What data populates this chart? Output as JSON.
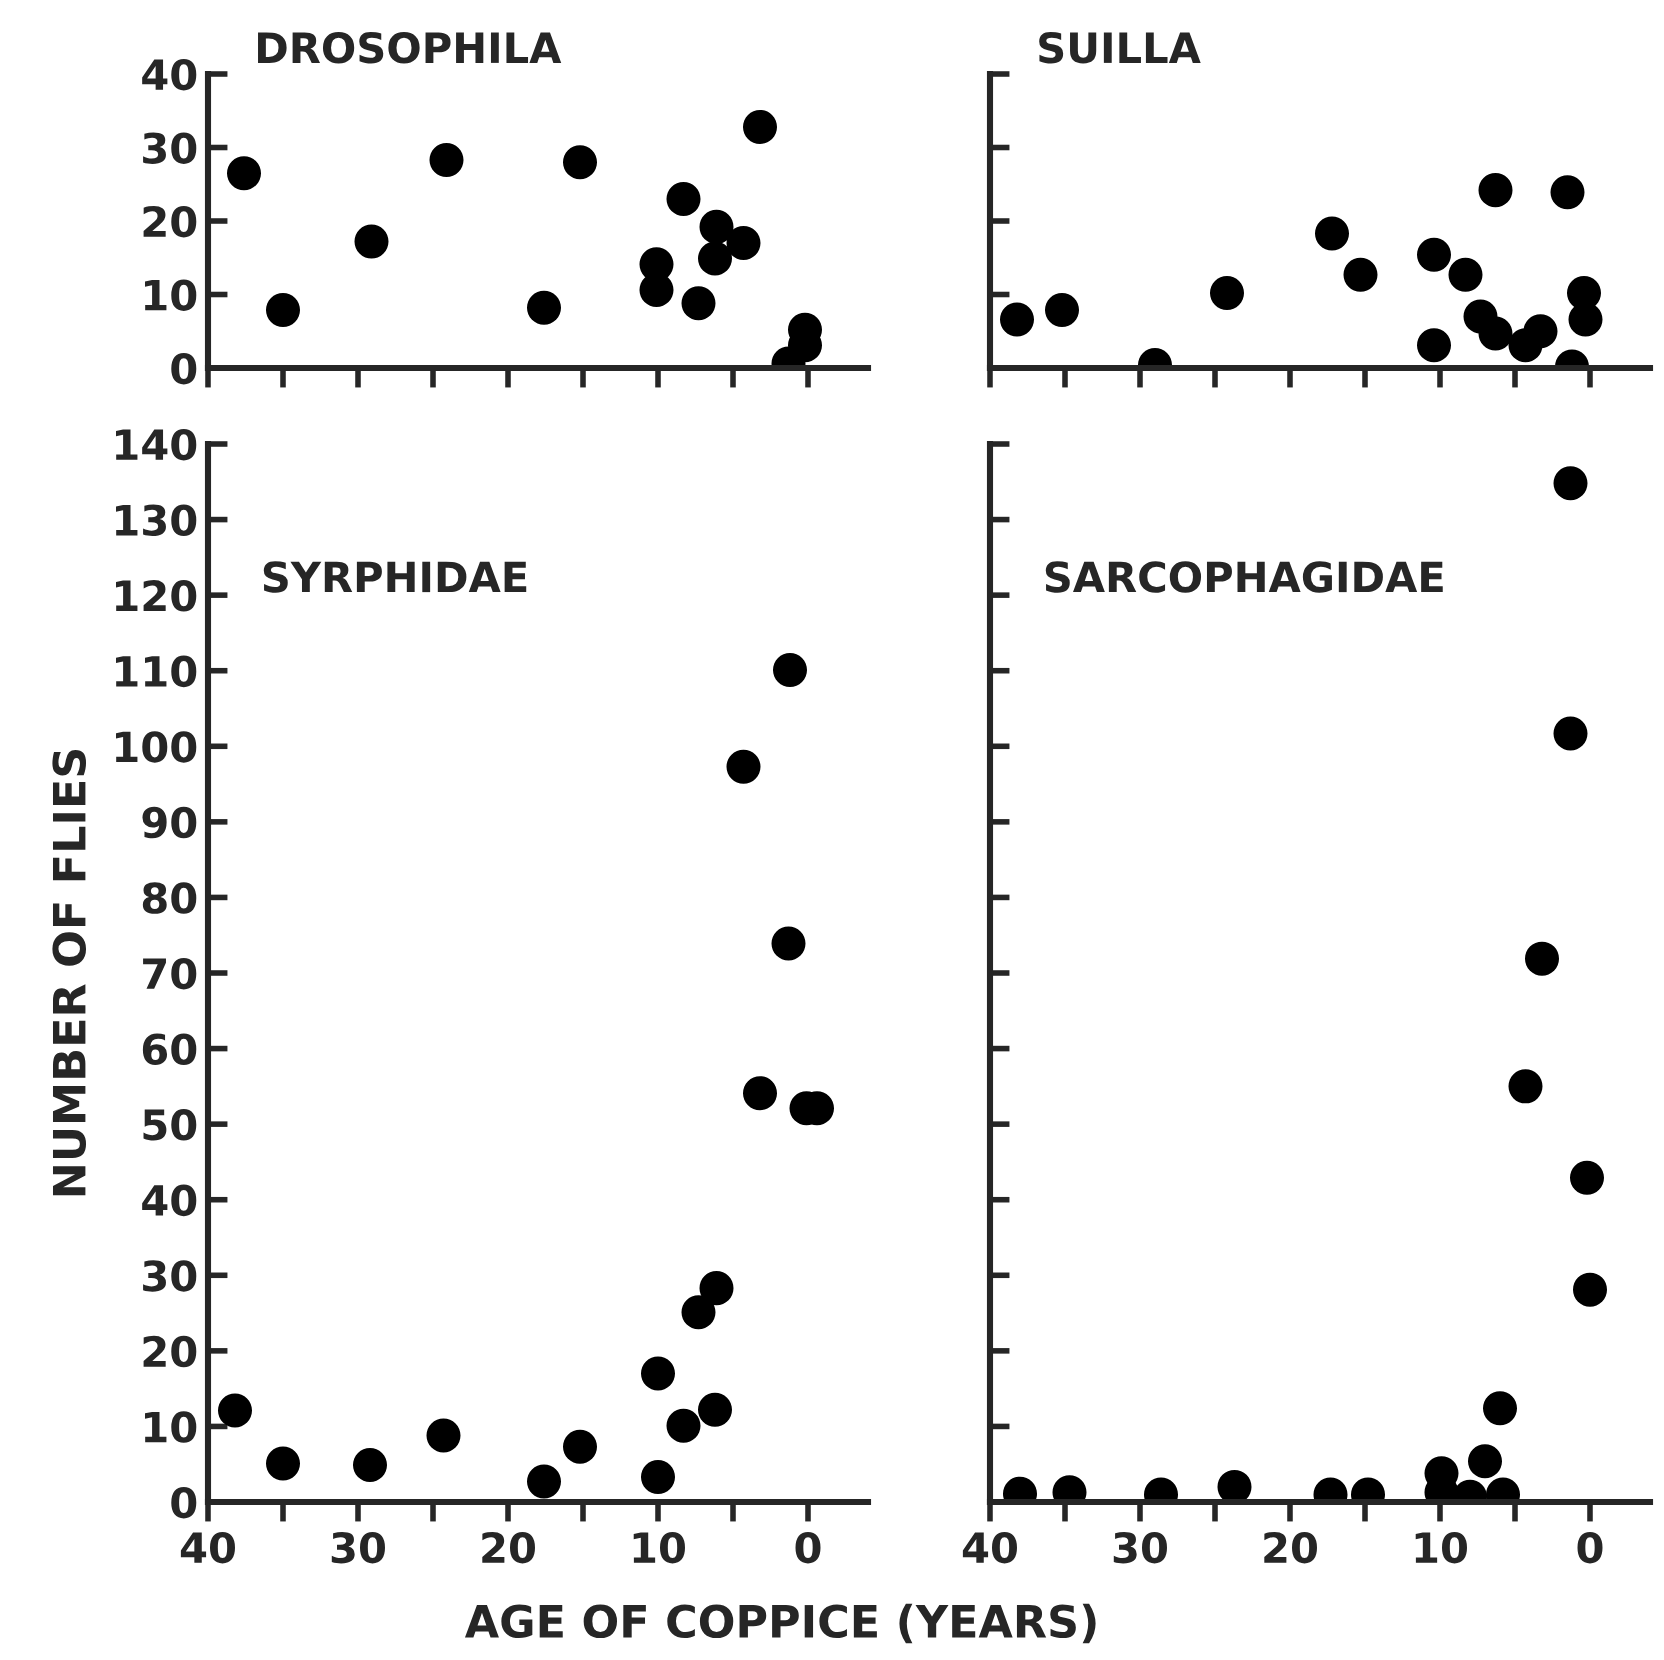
{
  "chart_data": [
    {
      "type": "scatter",
      "title": "DROSOPHILA",
      "xlim": [
        40,
        -4
      ],
      "ylim": [
        0,
        40
      ],
      "xticks": [
        40,
        35,
        30,
        25,
        20,
        15,
        10,
        5,
        0
      ],
      "yticks": [
        0,
        10,
        20,
        30,
        40
      ],
      "tick_labels": "y",
      "marker": "circle",
      "x": [
        37.6,
        35.0,
        29.1,
        24.1,
        17.6,
        15.2,
        10.1,
        10.1,
        8.3,
        7.3,
        6.1,
        6.2,
        4.3,
        3.2,
        1.3,
        0.2,
        0.2
      ],
      "series": [
        {
          "color": "#000000",
          "values": [
            26.5,
            7.9,
            17.2,
            28.3,
            8.2,
            28.0,
            14.1,
            10.6,
            23.0,
            8.8,
            19.2,
            14.9,
            17.0,
            32.8,
            0.6,
            5.2,
            3.1
          ]
        }
      ]
    },
    {
      "type": "scatter",
      "title": "SUILLA",
      "xlim": [
        40,
        -4
      ],
      "ylim": [
        0,
        40
      ],
      "xticks": [
        40,
        35,
        30,
        25,
        20,
        15,
        10,
        5,
        0
      ],
      "yticks": [
        0,
        10,
        20,
        30,
        40
      ],
      "tick_labels": false,
      "marker": "circle",
      "x": [
        38.2,
        35.2,
        29.0,
        24.2,
        17.2,
        15.3,
        10.4,
        10.4,
        8.3,
        7.3,
        6.3,
        6.3,
        4.3,
        3.3,
        1.5,
        1.2,
        0.4,
        0.3
      ],
      "series": [
        {
          "color": "#000000",
          "values": [
            6.6,
            7.9,
            0.4,
            10.2,
            18.3,
            12.7,
            15.4,
            3.1,
            12.7,
            7.0,
            24.2,
            4.7,
            3.1,
            5.0,
            23.9,
            0.2,
            10.2,
            6.6
          ]
        }
      ]
    },
    {
      "type": "scatter",
      "title": "SYRPHIDAE",
      "xlabel": "AGE OF COPPICE (YEARS)",
      "ylabel": "NUMBER OF FLIES",
      "xlim": [
        40,
        -4
      ],
      "ylim": [
        0,
        140
      ],
      "xticks": [
        40,
        {
          "value": 35,
          "label": null
        },
        30,
        {
          "value": 25,
          "label": null
        },
        20,
        {
          "value": 15,
          "label": null
        },
        10,
        {
          "value": 5,
          "label": null
        },
        0
      ],
      "yticks": [
        0,
        10,
        20,
        30,
        40,
        50,
        60,
        70,
        80,
        90,
        100,
        110,
        120,
        130,
        140
      ],
      "marker": "circle",
      "x": [
        38.2,
        35.0,
        29.2,
        24.3,
        17.6,
        15.2,
        10.0,
        10.0,
        8.3,
        7.3,
        6.1,
        6.2,
        4.3,
        3.2,
        1.2,
        1.3,
        0.1,
        -0.6
      ],
      "series": [
        {
          "color": "#000000",
          "values": [
            12.1,
            5.1,
            4.9,
            8.8,
            2.7,
            7.3,
            3.3,
            17.0,
            10.1,
            25.1,
            28.3,
            12.2,
            97.3,
            54.1,
            110.1,
            73.9,
            52.1,
            52.1
          ]
        }
      ]
    },
    {
      "type": "scatter",
      "title": "SARCOPHAGIDAE",
      "xlim": [
        40,
        -4
      ],
      "ylim": [
        0,
        140
      ],
      "xticks": [
        40,
        {
          "value": 35,
          "label": null
        },
        30,
        {
          "value": 25,
          "label": null
        },
        20,
        {
          "value": 15,
          "label": null
        },
        10,
        {
          "value": 5,
          "label": null
        },
        0
      ],
      "yticks": [
        0,
        10,
        20,
        30,
        40,
        50,
        60,
        70,
        80,
        90,
        100,
        110,
        120,
        130,
        140
      ],
      "tick_labels": "x",
      "marker": "circle",
      "x": [
        1.3,
        1.3,
        3.2,
        4.3,
        0.2,
        0.0,
        6.0,
        7.0,
        9.9,
        38.0,
        34.7,
        28.6,
        23.7,
        17.3,
        14.8,
        9.9,
        8.0,
        5.8
      ],
      "series": [
        {
          "color": "#000000",
          "values": [
            134.8,
            101.7,
            71.9,
            55.0,
            42.9,
            28.1,
            12.4,
            5.4,
            3.8,
            1.1,
            1.3,
            1.0,
            2.0,
            1.0,
            1.0,
            1.3,
            0.7,
            1.0
          ]
        }
      ]
    }
  ]
}
